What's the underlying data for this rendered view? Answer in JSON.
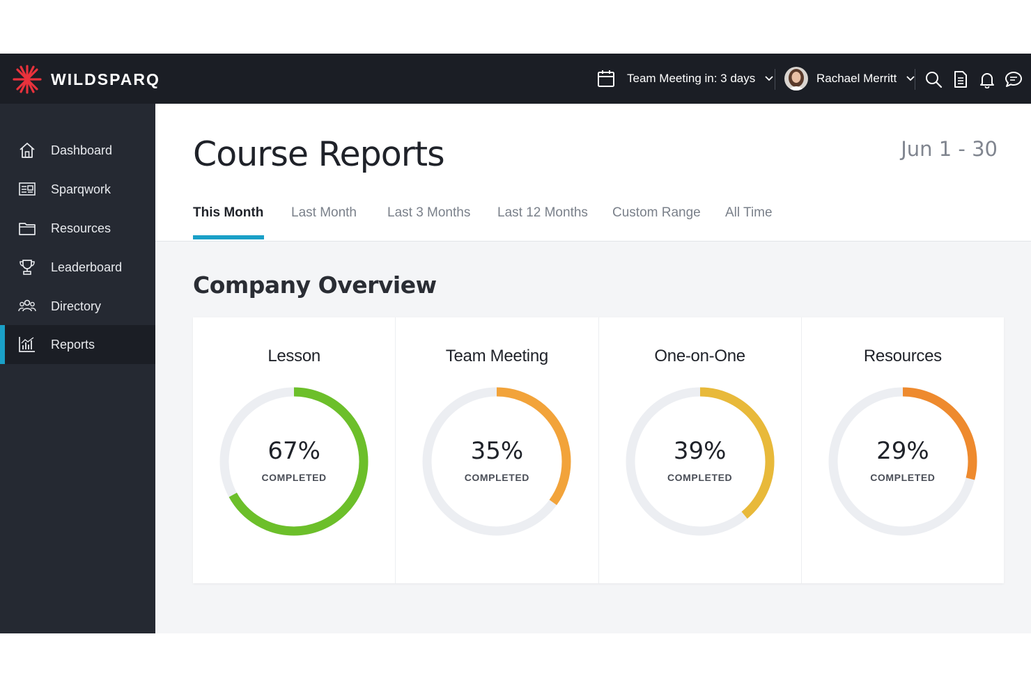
{
  "topbar": {
    "brand": "WILDSPARQ",
    "meeting_text": "Team Meeting in: 3 days",
    "user_name": "Rachael Merritt"
  },
  "sidebar": {
    "items": [
      {
        "label": "Dashboard",
        "icon": "home-icon"
      },
      {
        "label": "Sparqwork",
        "icon": "sparqwork-icon"
      },
      {
        "label": "Resources",
        "icon": "folder-icon"
      },
      {
        "label": "Leaderboard",
        "icon": "trophy-icon"
      },
      {
        "label": "Directory",
        "icon": "people-icon"
      },
      {
        "label": "Reports",
        "icon": "chart-icon",
        "active": true
      }
    ]
  },
  "header": {
    "title": "Course Reports",
    "date_range": "Jun 1 - 30",
    "tabs": [
      {
        "label": "This Month",
        "active": true
      },
      {
        "label": "Last Month"
      },
      {
        "label": "Last 3 Months"
      },
      {
        "label": "Last 12 Months"
      },
      {
        "label": "Custom Range"
      },
      {
        "label": "All Time"
      }
    ]
  },
  "overview": {
    "title": "Company Overview",
    "cards": [
      {
        "title": "Lesson",
        "percent": 67,
        "percent_text": "67%",
        "status": "COMPLETED",
        "color": "#6cbf2a"
      },
      {
        "title": "Team Meeting",
        "percent": 35,
        "percent_text": "35%",
        "status": "COMPLETED",
        "color": "#f2a33a"
      },
      {
        "title": "One-on-One",
        "percent": 39,
        "percent_text": "39%",
        "status": "COMPLETED",
        "color": "#e8b93a"
      },
      {
        "title": "Resources",
        "percent": 29,
        "percent_text": "29%",
        "status": "COMPLETED",
        "color": "#ee8a2e"
      }
    ]
  },
  "colors": {
    "topbar_bg": "#1b1e25",
    "sidebar_bg": "#252932",
    "accent": "#1aa0c7",
    "brand_red": "#e8323c",
    "track": "#eceef2"
  }
}
